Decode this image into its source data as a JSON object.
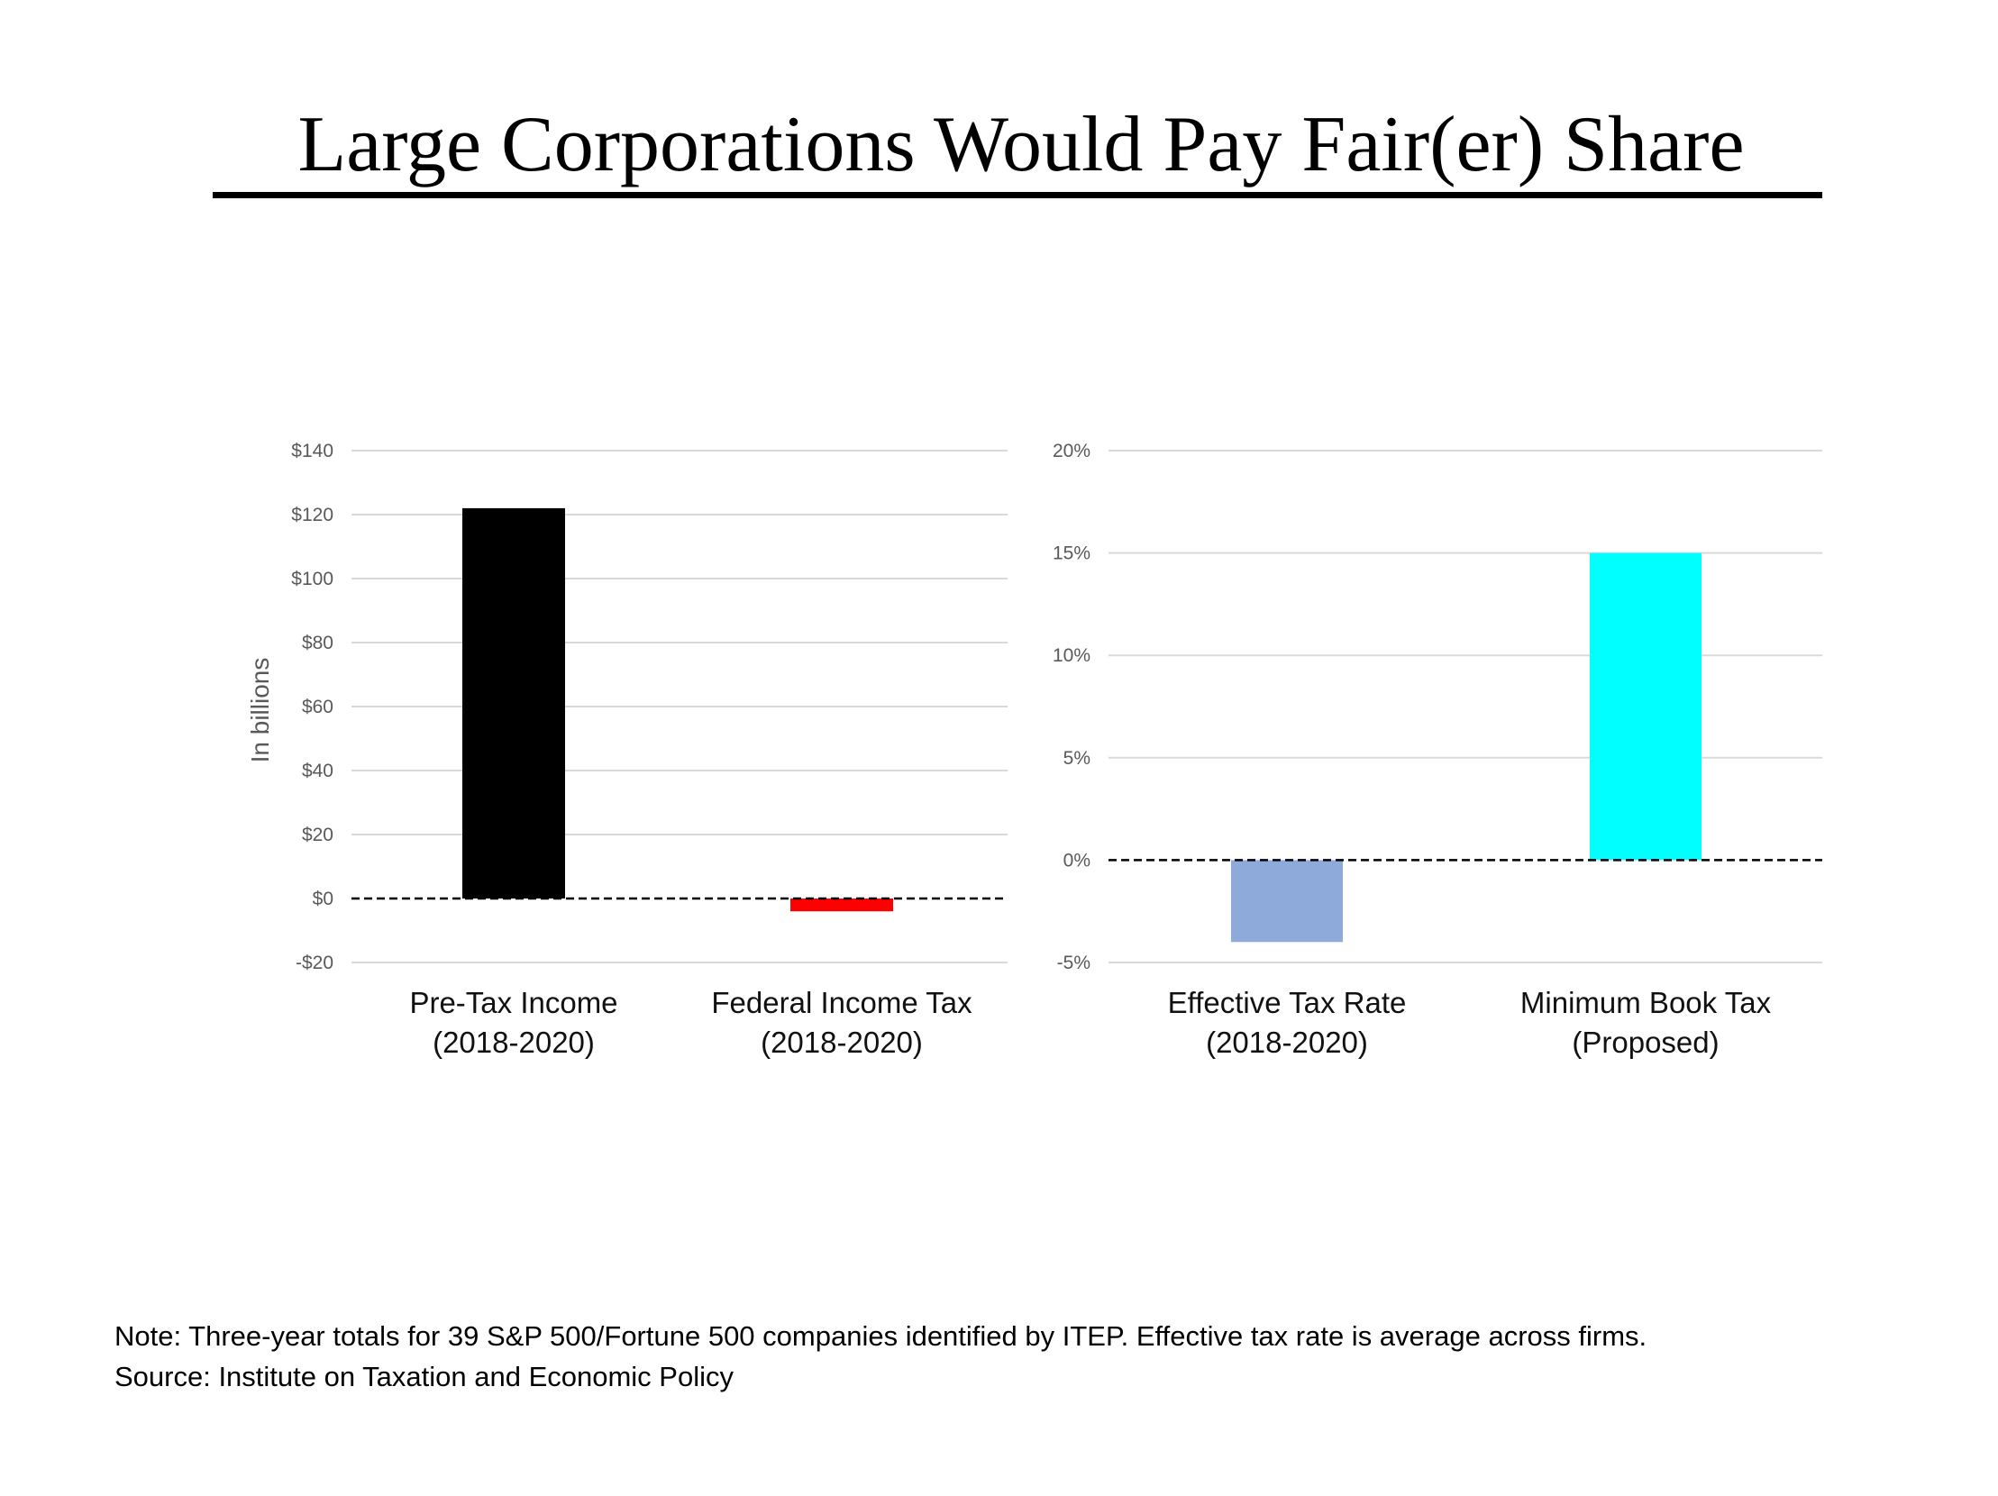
{
  "title": "Large Corporations Would Pay Fair(er) Share",
  "note": "Note: Three-year totals for 39 S&P 500/Fortune 500 companies identified by ITEP. Effective tax rate is average across firms.",
  "source": "Source: Institute on Taxation and Economic Policy",
  "chart_data": [
    {
      "type": "bar",
      "categories": [
        [
          "Pre-Tax Income",
          "(2018-2020)"
        ],
        [
          "Federal Income Tax",
          "(2018-2020)"
        ]
      ],
      "values": [
        122,
        -4
      ],
      "colors": [
        "#000000",
        "#ff0000"
      ],
      "ylabel": "In billions",
      "ylim": [
        -20,
        140
      ],
      "yticks": [
        -20,
        0,
        20,
        40,
        60,
        80,
        100,
        120,
        140
      ],
      "yticklabels": [
        "-$20",
        "$0",
        "$20",
        "$40",
        "$60",
        "$80",
        "$100",
        "$120",
        "$140"
      ],
      "zero_line": "dashed",
      "grid": true
    },
    {
      "type": "bar",
      "categories": [
        [
          "Effective Tax Rate",
          "(2018-2020)"
        ],
        [
          "Minimum Book Tax",
          "(Proposed)"
        ]
      ],
      "values": [
        -4,
        15
      ],
      "colors": [
        "#8eaadb",
        "#00ffff"
      ],
      "ylabel": "",
      "ylim": [
        -5,
        20
      ],
      "yticks": [
        -5,
        0,
        5,
        10,
        15,
        20
      ],
      "yticklabels": [
        "-5%",
        "0%",
        "5%",
        "10%",
        "15%",
        "20%"
      ],
      "zero_line": "dashed",
      "grid": true
    }
  ]
}
